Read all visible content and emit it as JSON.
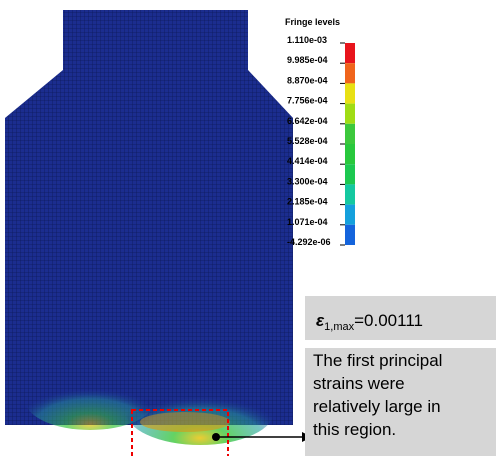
{
  "legend": {
    "title": "Fringe levels",
    "levels": [
      "1.110e-03",
      "9.985e-04",
      "8.870e-04",
      "7.756e-04",
      "6.642e-04",
      "5.528e-04",
      "4.414e-04",
      "3.300e-04",
      "2.185e-04",
      "1.071e-04",
      "-4.292e-06"
    ]
  },
  "max_strain": {
    "symbol": "ε",
    "subscript": "1,max",
    "text": "=0.00111"
  },
  "callout": {
    "lines": [
      "The first principal",
      "strains were",
      "relatively large in",
      "this region."
    ]
  }
}
